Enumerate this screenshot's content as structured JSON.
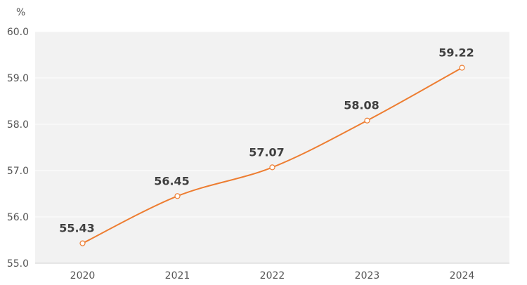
{
  "chart_data": {
    "type": "line",
    "title": "",
    "xlabel": "",
    "ylabel": "%",
    "categories": [
      "2020",
      "2021",
      "2022",
      "2023",
      "2024"
    ],
    "series": [
      {
        "name": "",
        "values": [
          55.43,
          56.45,
          57.07,
          58.08,
          59.22
        ],
        "labels": [
          "55.43",
          "56.45",
          "57.07",
          "58.08",
          "59.22"
        ],
        "color": "#ED7D31"
      }
    ],
    "ylim": [
      55.0,
      60.0
    ],
    "yticks": [
      "55.0",
      "56.0",
      "57.0",
      "58.0",
      "59.0",
      "60.0"
    ],
    "grid": true,
    "legend": "none",
    "colors": {
      "plot_background": "#F2F2F2",
      "gridline": "#FFFFFF",
      "axis_line": "#D0D0D0",
      "line": "#ED7D31",
      "marker_fill": "#FFFFFF"
    }
  }
}
